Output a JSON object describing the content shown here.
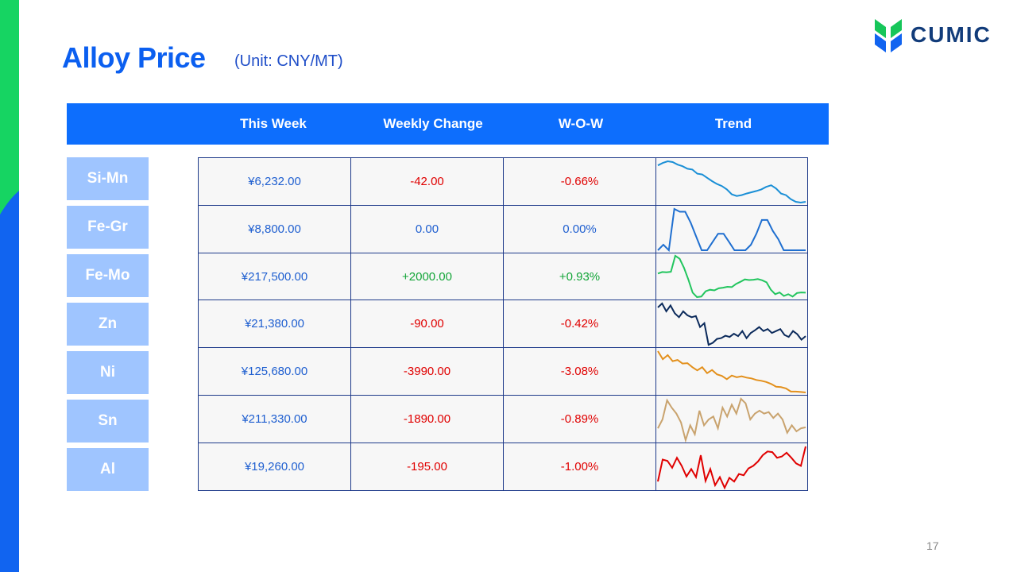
{
  "title": "Alloy Price",
  "unit": "(Unit: CNY/MT)",
  "logo_text": "CUMIC",
  "headers": [
    "This Week",
    "Weekly Change",
    "W-O-W",
    "Trend"
  ],
  "rows": [
    {
      "label": "Si-Mn",
      "this_week": "¥6,232.00",
      "weekly_change": "-42.00",
      "wow": "-0.66%",
      "direction": "down",
      "trend_color": "#1a8fd6",
      "trend": [
        6320,
        6326,
        6330,
        6328,
        6322,
        6318,
        6312,
        6310,
        6300,
        6298,
        6290,
        6282,
        6275,
        6270,
        6262,
        6250,
        6246,
        6248,
        6252,
        6255,
        6258,
        6262,
        6268,
        6272,
        6264,
        6252,
        6248,
        6238,
        6232,
        6230,
        6232
      ]
    },
    {
      "label": "Fe-Gr",
      "this_week": "¥8,800.00",
      "weekly_change": "0.00",
      "wow": "0.00%",
      "direction": "flat",
      "trend_color": "#1f6fd0",
      "trend": [
        8800,
        8820,
        8800,
        8950,
        8940,
        8940,
        8900,
        8850,
        8800,
        8800,
        8830,
        8860,
        8860,
        8830,
        8800,
        8800,
        8800,
        8820,
        8860,
        8910,
        8910,
        8870,
        8840,
        8800,
        8800,
        8800,
        8800,
        8800
      ]
    },
    {
      "label": "Fe-Mo",
      "this_week": "¥217,500.00",
      "weekly_change": "+2000.00",
      "wow": "+0.93%",
      "direction": "up",
      "trend_color": "#22c55e",
      "trend": [
        224000,
        224500,
        224400,
        224600,
        230000,
        229000,
        226000,
        222000,
        217500,
        216000,
        216200,
        218000,
        218500,
        218300,
        219000,
        219200,
        219500,
        219400,
        220500,
        221200,
        222000,
        221800,
        221900,
        222100,
        221700,
        221000,
        218500,
        217000,
        217600,
        216400,
        217000,
        216200,
        217400,
        217600,
        217500
      ]
    },
    {
      "label": "Zn",
      "this_week": "¥21,380.00",
      "weekly_change": "-90.00",
      "wow": "-0.42%",
      "direction": "down",
      "trend_color": "#0b2a5b",
      "trend": [
        22200,
        22300,
        22100,
        22250,
        22050,
        21950,
        22100,
        22000,
        21950,
        21980,
        21700,
        21800,
        21250,
        21300,
        21400,
        21420,
        21480,
        21450,
        21530,
        21470,
        21600,
        21420,
        21550,
        21620,
        21700,
        21600,
        21650,
        21550,
        21600,
        21650,
        21500,
        21450,
        21600,
        21520,
        21380,
        21470
      ]
    },
    {
      "label": "Ni",
      "this_week": "¥125,680.00",
      "weekly_change": "-3990.00",
      "wow": "-3.08%",
      "direction": "down",
      "trend_color": "#e3901c",
      "trend": [
        136000,
        134000,
        135000,
        133500,
        133800,
        132900,
        133000,
        132000,
        131200,
        132000,
        130500,
        131300,
        130200,
        129800,
        129000,
        129900,
        129500,
        129700,
        129400,
        129200,
        128800,
        128600,
        128300,
        127800,
        127100,
        127000,
        126700,
        125900,
        125900,
        125800,
        125680
      ]
    },
    {
      "label": "Sn",
      "this_week": "¥211,330.00",
      "weekly_change": "-1890.00",
      "wow": "-0.89%",
      "direction": "down",
      "trend_color": "#c9a36e",
      "trend": [
        211000,
        214000,
        220500,
        218000,
        216000,
        213000,
        207000,
        212000,
        209000,
        217000,
        212000,
        214000,
        215000,
        211000,
        218000,
        215000,
        219000,
        216000,
        221000,
        219500,
        214000,
        216000,
        217000,
        216000,
        216500,
        214500,
        216000,
        214000,
        209500,
        212000,
        210000,
        211000,
        211330
      ]
    },
    {
      "label": "Al",
      "this_week": "¥19,260.00",
      "weekly_change": "-195.00",
      "wow": "-1.00%",
      "direction": "down",
      "trend_color": "#e00000",
      "trend": [
        18700,
        19050,
        19030,
        18920,
        19080,
        18950,
        18780,
        18900,
        18770,
        19120,
        18710,
        18900,
        18640,
        18770,
        18600,
        18760,
        18700,
        18820,
        18800,
        18910,
        18950,
        19020,
        19120,
        19180,
        19170,
        19080,
        19100,
        19160,
        19080,
        18990,
        18950,
        19260
      ]
    }
  ],
  "page_number": "17",
  "colors": {
    "accent": "#0d6efd",
    "label_bg": "#9fc5ff",
    "positive": "#13a538",
    "negative": "#e00000",
    "neutral": "#1f5fd0"
  }
}
